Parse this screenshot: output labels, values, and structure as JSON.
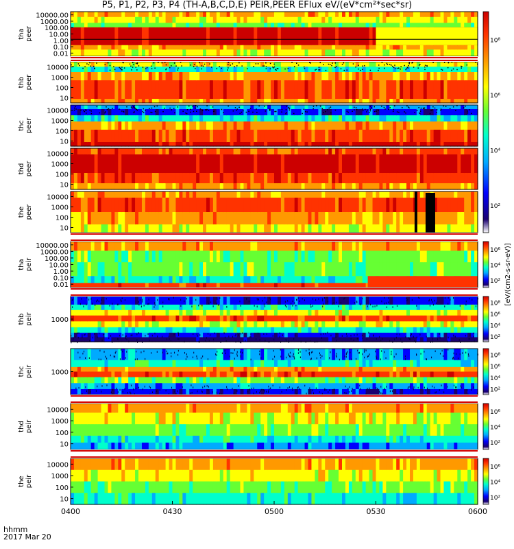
{
  "title": "P5, P1, P2, P3, P4 (TH-A,B,C,D,E) PEIR,PEER EFlux eV/(eV*cm²*sec*sr)",
  "bottom_label": {
    "line1": "hhmm",
    "line2": "2017 Mar 20"
  },
  "x_ticks": [
    "0400",
    "0430",
    "0500",
    "0530",
    "0600"
  ],
  "colorbar_unit_label": "[eV/(cm2-s-sr-eV)]",
  "colormap": [
    "#ffffff",
    "#1a0070",
    "#0000ff",
    "#00aaff",
    "#00ffcc",
    "#66ff33",
    "#ffff00",
    "#ff9900",
    "#ff3300",
    "#cc0000"
  ],
  "chart_data": {
    "type": "heatmap",
    "x_range": [
      "0400",
      "0600"
    ],
    "x_ticks": [
      "0400",
      "0430",
      "0500",
      "0530",
      "0600"
    ],
    "panels": [
      {
        "name": "tha_peer",
        "label": [
          "tha",
          "peer"
        ],
        "y_ticks": [
          "10000.00",
          "1000.00",
          "100.00",
          "10.00",
          "1.00",
          "0.10",
          "0.01"
        ],
        "cbar_ticks": [
          "10⁸",
          "10⁶",
          "10⁴",
          "10²"
        ]
      },
      {
        "name": "thb_peer",
        "label": [
          "thb",
          "peer"
        ],
        "y_ticks": [
          "10000",
          "1000",
          "100",
          "10"
        ],
        "cbar_ticks": [
          "10⁸",
          "10⁶",
          "10⁴",
          "10²"
        ]
      },
      {
        "name": "thc_peer",
        "label": [
          "thc",
          "peer"
        ],
        "y_ticks": [
          "10000",
          "1000",
          "100",
          "10"
        ],
        "cbar_ticks": [
          "10⁸",
          "10⁶",
          "10⁴",
          "10²"
        ]
      },
      {
        "name": "thd_peer",
        "label": [
          "thd",
          "peer"
        ],
        "y_ticks": [
          "10000",
          "1000",
          "100",
          "10"
        ],
        "cbar_ticks": [
          "10⁸",
          "10⁶",
          "10⁴",
          "10²"
        ]
      },
      {
        "name": "the_peer",
        "label": [
          "the",
          "peer"
        ],
        "y_ticks": [
          "10000",
          "1000",
          "100",
          "10"
        ],
        "cbar_ticks": [
          "10⁸",
          "10⁶",
          "10⁴",
          "10²"
        ]
      },
      {
        "name": "tha_peir",
        "label": [
          "tha",
          "peir"
        ],
        "y_ticks": [
          "10000.00",
          "1000.00",
          "100.00",
          "10.00",
          "1.00",
          "0.10",
          "0.01"
        ],
        "cbar_ticks": [
          "10⁶",
          "10⁴",
          "10²"
        ]
      },
      {
        "name": "thb_peir",
        "label": [
          "thb",
          "peir"
        ],
        "y_ticks": [
          "1000"
        ],
        "cbar_ticks": [
          "10⁸",
          "10⁶",
          "10⁴",
          "10²"
        ]
      },
      {
        "name": "thc_peir",
        "label": [
          "thc",
          "peir"
        ],
        "y_ticks": [
          "1000"
        ],
        "cbar_ticks": [
          "10⁸",
          "10⁶",
          "10⁴",
          "10²"
        ]
      },
      {
        "name": "thd_peir",
        "label": [
          "thd",
          "peir"
        ],
        "y_ticks": [
          "10000",
          "1000",
          "100",
          "10"
        ],
        "cbar_ticks": [
          "10⁶",
          "10⁴",
          "10²"
        ]
      },
      {
        "name": "the_peir",
        "label": [
          "the",
          "peir"
        ],
        "y_ticks": [
          "10000",
          "1000",
          "100",
          "10"
        ],
        "cbar_ticks": [
          "10⁶",
          "10⁴",
          "10²"
        ]
      }
    ]
  }
}
